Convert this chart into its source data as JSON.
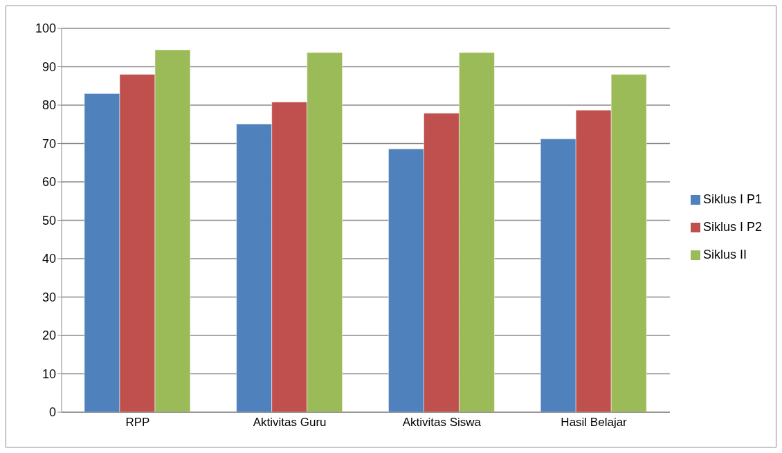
{
  "chart_data": {
    "type": "bar",
    "categories": [
      "RPP",
      "Aktivitas Guru",
      "Aktivitas Siswa",
      "Hasil Belajar"
    ],
    "series": [
      {
        "name": "Siklus I P1",
        "color": "#4f81bd",
        "values": [
          83,
          75.1,
          68.6,
          71.2
        ]
      },
      {
        "name": "Siklus I P2",
        "color": "#c0504d",
        "values": [
          88,
          80.8,
          77.9,
          78.7
        ]
      },
      {
        "name": "Siklus II",
        "color": "#9bbb59",
        "values": [
          94.4,
          93.7,
          93.7,
          88
        ]
      }
    ],
    "ylim": [
      0,
      100
    ],
    "yticks": [
      0,
      10,
      20,
      30,
      40,
      50,
      60,
      70,
      80,
      90,
      100
    ],
    "grid": "y",
    "legend": "right"
  }
}
